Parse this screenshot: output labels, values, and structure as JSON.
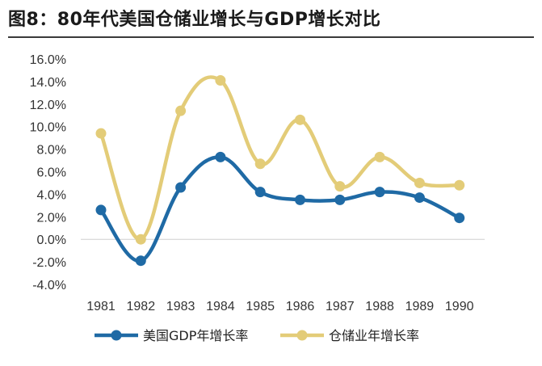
{
  "title": "图8：80年代美国仓储业增长与GDP增长对比",
  "chart_data": {
    "type": "line",
    "title": "图8：80年代美国仓储业增长与GDP增长对比",
    "categories": [
      "1981",
      "1982",
      "1983",
      "1984",
      "1985",
      "1986",
      "1987",
      "1988",
      "1989",
      "1990"
    ],
    "y_ticks": [
      "16.0%",
      "14.0%",
      "12.0%",
      "10.0%",
      "8.0%",
      "6.0%",
      "4.0%",
      "2.0%",
      "0.0%",
      "-2.0%",
      "-4.0%"
    ],
    "ylim": [
      -4,
      16
    ],
    "series": [
      {
        "name": "美国GDP年增长率",
        "color": "#1f6aa5",
        "values": [
          2.6,
          -1.9,
          4.6,
          7.3,
          4.2,
          3.5,
          3.5,
          4.2,
          3.7,
          1.9
        ]
      },
      {
        "name": "仓储业年增长率",
        "color": "#e3cc78",
        "values": [
          9.4,
          0.0,
          11.4,
          14.1,
          6.7,
          10.6,
          4.7,
          7.3,
          5.0,
          4.8
        ]
      }
    ]
  }
}
